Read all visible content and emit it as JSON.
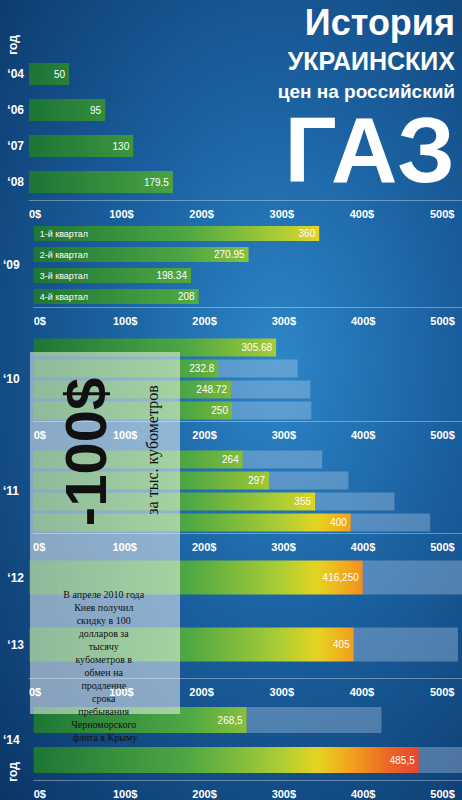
{
  "title": [
    "История",
    "УКРАИНСКИХ",
    "цен на российский",
    "ГАЗ"
  ],
  "annotations": [
    "год",
    "год",
    "-100$",
    "за тыс. кубометров",
    "В апреле 2010 года Киев получил скидку в 100 долларов за тысячу кубометров в обмен на продление срока пребывания Черноморского флота в Крыму"
  ],
  "chart_data": [
    {
      "type": "bar",
      "orientation": "horizontal",
      "data_labels": true,
      "categories": [
        "‘04",
        "‘06",
        "‘07",
        "‘08"
      ],
      "values": [
        50,
        95,
        130,
        179.5
      ],
      "xlim": [
        0,
        540
      ],
      "xticks": [
        {
          "value": 0,
          "label": "0$"
        },
        {
          "value": 100,
          "label": "100$"
        },
        {
          "value": 200,
          "label": "200$"
        },
        {
          "value": 300,
          "label": "300$"
        },
        {
          "value": 400,
          "label": "400$"
        },
        {
          "value": 500,
          "label": "500$"
        }
      ]
    },
    {
      "type": "bar",
      "orientation": "horizontal",
      "data_labels": true,
      "ylabel": "‘09",
      "categories": [
        "1-й квартал",
        "2-й квартал",
        "3-й квартал",
        "4-й квартал"
      ],
      "values": [
        360,
        270.95,
        198.34,
        208
      ],
      "xlim": [
        0,
        540
      ],
      "xticks": [
        {
          "value": 0,
          "label": "0$"
        },
        {
          "value": 100,
          "label": "100$"
        },
        {
          "value": 200,
          "label": "200$"
        },
        {
          "value": 300,
          "label": "300$"
        },
        {
          "value": 400,
          "label": "400$"
        },
        {
          "value": 500,
          "label": "500$"
        }
      ]
    },
    {
      "type": "bar",
      "orientation": "horizontal",
      "data_labels": true,
      "stacked": true,
      "ylabel": "‘10",
      "categories": [
        null,
        null,
        null,
        null
      ],
      "values": [
        305.68,
        232.8,
        248.72,
        250
      ],
      "discount": [
        null,
        100,
        100,
        100
      ],
      "xlim": [
        0,
        540
      ],
      "xticks": [
        {
          "value": 0,
          "label": "0$"
        },
        {
          "value": 100,
          "label": "100$"
        },
        {
          "value": 200,
          "label": "200$"
        },
        {
          "value": 300,
          "label": "300$"
        },
        {
          "value": 400,
          "label": "400$"
        },
        {
          "value": 500,
          "label": "500$"
        }
      ]
    },
    {
      "type": "bar",
      "orientation": "horizontal",
      "data_labels": true,
      "stacked": true,
      "ylabel": "‘11",
      "categories": [
        null,
        null,
        null,
        null
      ],
      "values": [
        264,
        297,
        355,
        400
      ],
      "discount": [
        100,
        100,
        100,
        100
      ],
      "xlim": [
        0,
        540
      ],
      "xticks": [
        {
          "value": 0,
          "label": "0$"
        },
        {
          "value": 100,
          "label": "100$"
        },
        {
          "value": 200,
          "label": "200$"
        },
        {
          "value": 300,
          "label": "300$"
        },
        {
          "value": 400,
          "label": "400$"
        },
        {
          "value": 500,
          "label": "500$"
        }
      ]
    },
    {
      "type": "bar",
      "orientation": "horizontal",
      "data_labels": true,
      "stacked": true,
      "categories": [
        "‘12",
        "‘13"
      ],
      "values": [
        416.25,
        405
      ],
      "value_labels": [
        "416,250",
        "405"
      ],
      "discount": [
        130,
        130
      ],
      "xlim": [
        0,
        540
      ],
      "xticks": [
        {
          "value": 0,
          "label": "0$"
        },
        {
          "value": 100,
          "label": "100$"
        },
        {
          "value": 200,
          "label": "200$"
        },
        {
          "value": 300,
          "label": "300$"
        },
        {
          "value": 400,
          "label": "400$"
        },
        {
          "value": 500,
          "label": "500$"
        }
      ]
    },
    {
      "type": "bar",
      "orientation": "horizontal",
      "data_labels": true,
      "stacked": true,
      "ylabel": "‘14",
      "categories": [
        null,
        null
      ],
      "values": [
        268.5,
        485.5
      ],
      "value_labels": [
        "268,5",
        "485,5"
      ],
      "discount": [
        170,
        55
      ],
      "xlim": [
        0,
        540
      ],
      "xticks": [
        {
          "value": 0,
          "label": "0$"
        },
        {
          "value": 100,
          "label": "100$"
        },
        {
          "value": 200,
          "label": "200$"
        },
        {
          "value": 300,
          "label": "300$"
        },
        {
          "value": 400,
          "label": "400$"
        },
        {
          "value": 500,
          "label": "500$"
        }
      ]
    }
  ]
}
